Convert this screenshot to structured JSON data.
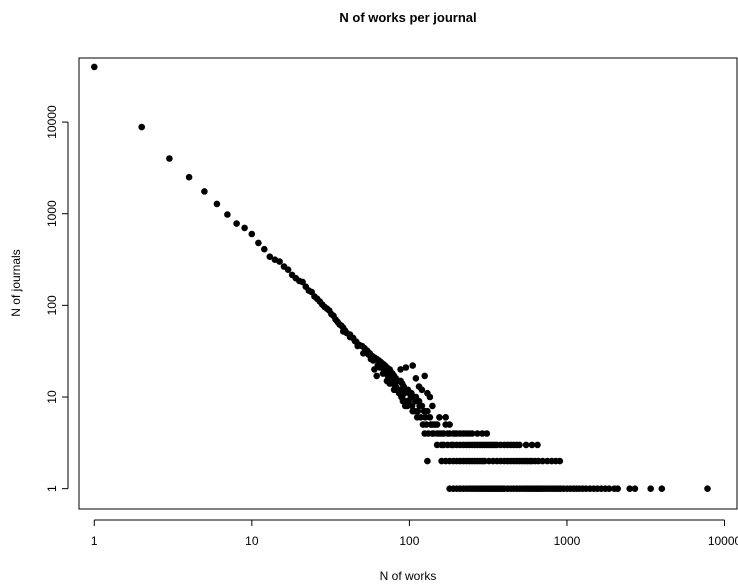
{
  "chart_data": {
    "type": "scatter",
    "title": "N of works per journal",
    "xlabel": "N of works",
    "ylabel": "N of journals",
    "x_scale": "log",
    "y_scale": "log",
    "xlim": [
      0.8,
      12000
    ],
    "ylim": [
      0.6,
      50000
    ],
    "x_ticks": [
      1,
      10,
      100,
      1000,
      10000
    ],
    "x_tick_labels": [
      "1",
      "10",
      "100",
      "1000",
      "10000"
    ],
    "y_ticks": [
      1,
      10,
      100,
      1000,
      10000
    ],
    "y_tick_labels": [
      "1",
      "10",
      "100",
      "1000",
      "10000"
    ],
    "grid": false,
    "legend": "none",
    "marker_color": "#000000",
    "points": [
      [
        1,
        40000
      ],
      [
        2,
        8800
      ],
      [
        3,
        4000
      ],
      [
        4,
        2500
      ],
      [
        5,
        1750
      ],
      [
        6,
        1280
      ],
      [
        7,
        980
      ],
      [
        8,
        780
      ],
      [
        9,
        700
      ],
      [
        10,
        600
      ],
      [
        11,
        480
      ],
      [
        12,
        410
      ],
      [
        13,
        340
      ],
      [
        14,
        315
      ],
      [
        15,
        300
      ],
      [
        16,
        265
      ],
      [
        17,
        245
      ],
      [
        18,
        215
      ],
      [
        19,
        198
      ],
      [
        20,
        185
      ],
      [
        21,
        180
      ],
      [
        22,
        160
      ],
      [
        23,
        145
      ],
      [
        24,
        140
      ],
      [
        25,
        125
      ],
      [
        26,
        118
      ],
      [
        27,
        110
      ],
      [
        28,
        102
      ],
      [
        29,
        96
      ],
      [
        30,
        92
      ],
      [
        31,
        88
      ],
      [
        32,
        80
      ],
      [
        33,
        77
      ],
      [
        34,
        70
      ],
      [
        35,
        66
      ],
      [
        36,
        62
      ],
      [
        37,
        60
      ],
      [
        38,
        57
      ],
      [
        39,
        53
      ],
      [
        40,
        50
      ],
      [
        42,
        48
      ],
      [
        44,
        44
      ],
      [
        45,
        41
      ],
      [
        46,
        40
      ],
      [
        48,
        37
      ],
      [
        50,
        36
      ],
      [
        52,
        34
      ],
      [
        54,
        32
      ],
      [
        56,
        30
      ],
      [
        58,
        28
      ],
      [
        60,
        27
      ],
      [
        62,
        26
      ],
      [
        64,
        25
      ],
      [
        66,
        24
      ],
      [
        68,
        23
      ],
      [
        70,
        22
      ],
      [
        72,
        21
      ],
      [
        74,
        20
      ],
      [
        76,
        19
      ],
      [
        78,
        18
      ],
      [
        80,
        17
      ],
      [
        82,
        16
      ],
      [
        85,
        15
      ],
      [
        88,
        15
      ],
      [
        90,
        14
      ],
      [
        92,
        13
      ],
      [
        95,
        12
      ],
      [
        98,
        12
      ],
      [
        100,
        11
      ],
      [
        103,
        11
      ],
      [
        106,
        10
      ],
      [
        110,
        10
      ],
      [
        115,
        9
      ],
      [
        120,
        8
      ],
      [
        125,
        7
      ],
      [
        130,
        7
      ],
      [
        135,
        6
      ],
      [
        140,
        5
      ],
      [
        145,
        5
      ],
      [
        150,
        4
      ],
      [
        38,
        52
      ],
      [
        42,
        45
      ],
      [
        47,
        36
      ],
      [
        51,
        30
      ],
      [
        55,
        29
      ],
      [
        57,
        26
      ],
      [
        59,
        25
      ],
      [
        63,
        22
      ],
      [
        65,
        21
      ],
      [
        69,
        20
      ],
      [
        71,
        18
      ],
      [
        73,
        17
      ],
      [
        75,
        16
      ],
      [
        77,
        15
      ],
      [
        79,
        14
      ],
      [
        81,
        13
      ],
      [
        83,
        12
      ],
      [
        86,
        11
      ],
      [
        89,
        10
      ],
      [
        91,
        9
      ],
      [
        94,
        8
      ],
      [
        97,
        8
      ],
      [
        99,
        9
      ],
      [
        104,
        8
      ],
      [
        108,
        7
      ],
      [
        112,
        6
      ],
      [
        118,
        6
      ],
      [
        122,
        5
      ],
      [
        128,
        5
      ],
      [
        132,
        4
      ],
      [
        60,
        20
      ],
      [
        68,
        18
      ],
      [
        75,
        14
      ],
      [
        82,
        13
      ],
      [
        87,
        12
      ],
      [
        93,
        11
      ],
      [
        102,
        10
      ],
      [
        109,
        9
      ],
      [
        116,
        8
      ],
      [
        124,
        7
      ],
      [
        62,
        17
      ],
      [
        72,
        15
      ],
      [
        80,
        12
      ],
      [
        90,
        10
      ],
      [
        96,
        9
      ],
      [
        105,
        7
      ],
      [
        113,
        7
      ],
      [
        126,
        6
      ],
      [
        137,
        5
      ],
      [
        142,
        4
      ],
      [
        75,
        20
      ],
      [
        88,
        20
      ],
      [
        95,
        21
      ],
      [
        105,
        22
      ],
      [
        110,
        16
      ],
      [
        115,
        13
      ],
      [
        120,
        12
      ],
      [
        130,
        11
      ],
      [
        135,
        10
      ],
      [
        140,
        8
      ],
      [
        125,
        17
      ],
      [
        160,
        3
      ],
      [
        165,
        4
      ],
      [
        170,
        5
      ],
      [
        175,
        3
      ],
      [
        180,
        4
      ],
      [
        185,
        3
      ],
      [
        190,
        3
      ],
      [
        195,
        4
      ],
      [
        200,
        3
      ],
      [
        210,
        3
      ],
      [
        220,
        3
      ],
      [
        230,
        3
      ],
      [
        240,
        3
      ],
      [
        250,
        3
      ],
      [
        260,
        3
      ],
      [
        270,
        3
      ],
      [
        280,
        3
      ],
      [
        290,
        3
      ],
      [
        300,
        3
      ],
      [
        310,
        3
      ],
      [
        320,
        3
      ],
      [
        330,
        3
      ],
      [
        340,
        3
      ],
      [
        350,
        3
      ],
      [
        360,
        3
      ],
      [
        380,
        3
      ],
      [
        400,
        3
      ],
      [
        420,
        3
      ],
      [
        440,
        3
      ],
      [
        460,
        3
      ],
      [
        480,
        3
      ],
      [
        500,
        3
      ],
      [
        550,
        3
      ],
      [
        600,
        3
      ],
      [
        650,
        3
      ],
      [
        150,
        3
      ],
      [
        155,
        4
      ],
      [
        165,
        3
      ],
      [
        160,
        2
      ],
      [
        170,
        2
      ],
      [
        180,
        2
      ],
      [
        190,
        2
      ],
      [
        200,
        2
      ],
      [
        210,
        2
      ],
      [
        220,
        2
      ],
      [
        230,
        2
      ],
      [
        240,
        2
      ],
      [
        250,
        2
      ],
      [
        260,
        2
      ],
      [
        270,
        2
      ],
      [
        280,
        2
      ],
      [
        290,
        2
      ],
      [
        300,
        2
      ],
      [
        320,
        2
      ],
      [
        340,
        2
      ],
      [
        360,
        2
      ],
      [
        380,
        2
      ],
      [
        400,
        2
      ],
      [
        420,
        2
      ],
      [
        440,
        2
      ],
      [
        460,
        2
      ],
      [
        480,
        2
      ],
      [
        500,
        2
      ],
      [
        520,
        2
      ],
      [
        540,
        2
      ],
      [
        560,
        2
      ],
      [
        580,
        2
      ],
      [
        600,
        2
      ],
      [
        630,
        2
      ],
      [
        660,
        2
      ],
      [
        700,
        2
      ],
      [
        750,
        2
      ],
      [
        800,
        2
      ],
      [
        850,
        2
      ],
      [
        900,
        2
      ],
      [
        130,
        2
      ],
      [
        160,
        4
      ],
      [
        175,
        4
      ],
      [
        190,
        4
      ],
      [
        210,
        4
      ],
      [
        230,
        4
      ],
      [
        250,
        4
      ],
      [
        270,
        4
      ],
      [
        290,
        4
      ],
      [
        310,
        4
      ],
      [
        140,
        4
      ],
      [
        150,
        5
      ],
      [
        155,
        6
      ],
      [
        170,
        6
      ],
      [
        180,
        5
      ],
      [
        200,
        4
      ],
      [
        220,
        4
      ],
      [
        240,
        4
      ],
      [
        125,
        4
      ],
      [
        180,
        1
      ],
      [
        190,
        1
      ],
      [
        200,
        1
      ],
      [
        210,
        1
      ],
      [
        220,
        1
      ],
      [
        230,
        1
      ],
      [
        240,
        1
      ],
      [
        250,
        1
      ],
      [
        260,
        1
      ],
      [
        270,
        1
      ],
      [
        280,
        1
      ],
      [
        290,
        1
      ],
      [
        300,
        1
      ],
      [
        310,
        1
      ],
      [
        320,
        1
      ],
      [
        330,
        1
      ],
      [
        340,
        1
      ],
      [
        350,
        1
      ],
      [
        360,
        1
      ],
      [
        370,
        1
      ],
      [
        380,
        1
      ],
      [
        390,
        1
      ],
      [
        400,
        1
      ],
      [
        420,
        1
      ],
      [
        440,
        1
      ],
      [
        460,
        1
      ],
      [
        480,
        1
      ],
      [
        500,
        1
      ],
      [
        520,
        1
      ],
      [
        540,
        1
      ],
      [
        560,
        1
      ],
      [
        580,
        1
      ],
      [
        600,
        1
      ],
      [
        620,
        1
      ],
      [
        640,
        1
      ],
      [
        660,
        1
      ],
      [
        680,
        1
      ],
      [
        700,
        1
      ],
      [
        730,
        1
      ],
      [
        760,
        1
      ],
      [
        790,
        1
      ],
      [
        820,
        1
      ],
      [
        850,
        1
      ],
      [
        880,
        1
      ],
      [
        910,
        1
      ],
      [
        950,
        1
      ],
      [
        1000,
        1
      ],
      [
        1050,
        1
      ],
      [
        1100,
        1
      ],
      [
        1150,
        1
      ],
      [
        1200,
        1
      ],
      [
        1260,
        1
      ],
      [
        1320,
        1
      ],
      [
        1400,
        1
      ],
      [
        1480,
        1
      ],
      [
        1560,
        1
      ],
      [
        1650,
        1
      ],
      [
        1750,
        1
      ],
      [
        1850,
        1
      ],
      [
        2000,
        1
      ],
      [
        2100,
        1
      ],
      [
        2500,
        1
      ],
      [
        2700,
        1
      ],
      [
        3400,
        1
      ],
      [
        4000,
        1
      ],
      [
        7800,
        1
      ]
    ]
  }
}
